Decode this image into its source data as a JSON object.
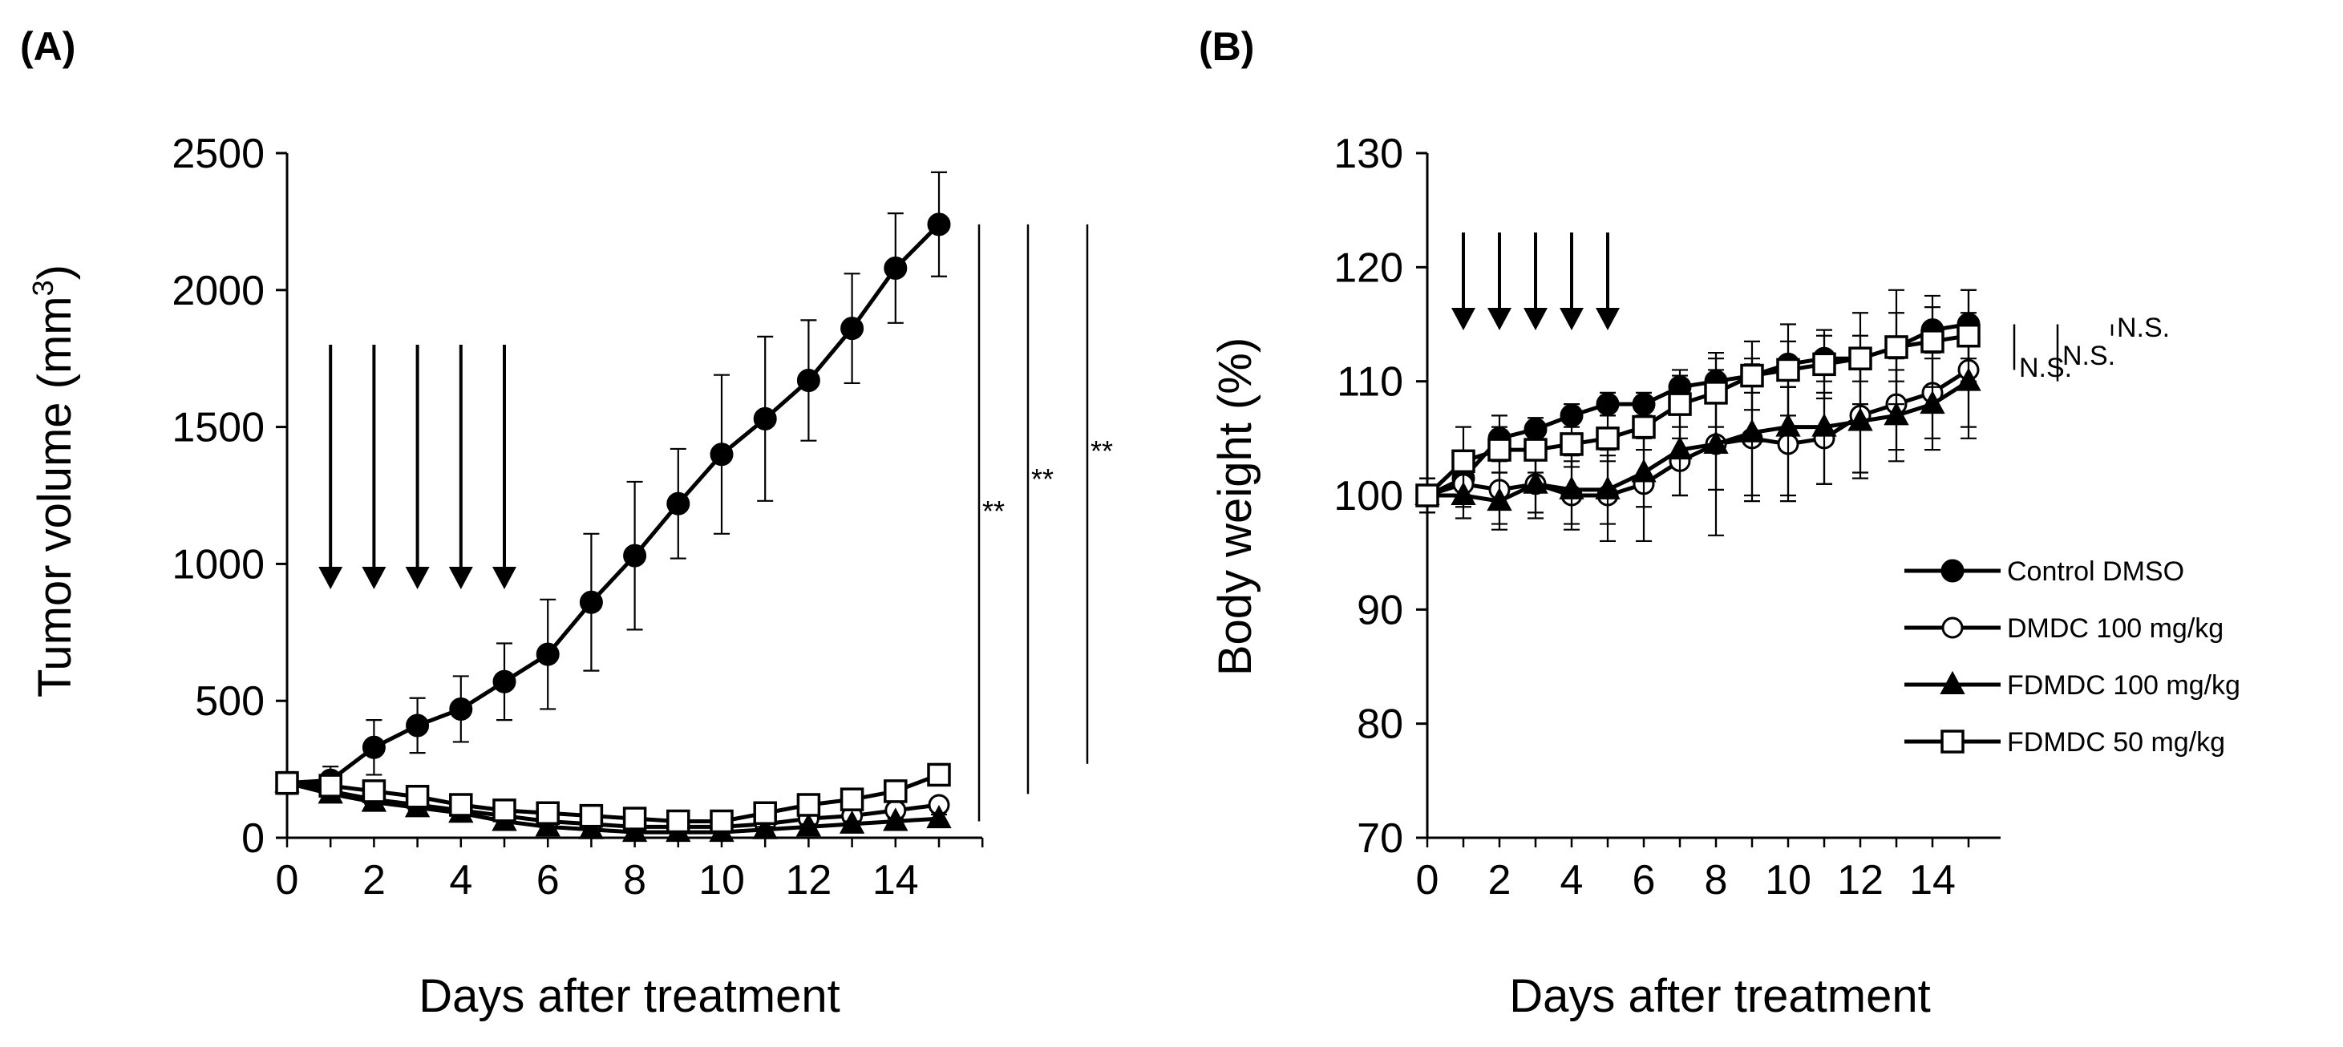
{
  "figure": {
    "panel_a_label": "(A)",
    "panel_b_label": "(B)"
  },
  "chart_data": [
    {
      "panel": "(A)",
      "type": "line",
      "xlabel": "Days after treatment",
      "ylabel_main": "Tumor volume (mm",
      "ylabel_sup": "3",
      "ylabel_end": ")",
      "xlim": [
        0,
        16
      ],
      "ylim": [
        0,
        2500
      ],
      "x_ticks": [
        0,
        2,
        4,
        6,
        8,
        10,
        12,
        14
      ],
      "y_ticks": [
        0,
        500,
        1000,
        1500,
        2000,
        2500
      ],
      "treatment_days": [
        1,
        2,
        3,
        4,
        5
      ],
      "x": [
        0,
        1,
        2,
        3,
        4,
        5,
        6,
        7,
        8,
        9,
        10,
        11,
        12,
        13,
        14,
        15
      ],
      "series": [
        {
          "marker": "filled-circle",
          "values": [
            200,
            210,
            330,
            410,
            470,
            570,
            670,
            860,
            1030,
            1220,
            1400,
            1530,
            1670,
            1860,
            2080,
            2240
          ],
          "errors": [
            40,
            50,
            100,
            100,
            120,
            140,
            200,
            250,
            270,
            200,
            290,
            300,
            220,
            200,
            200,
            190
          ]
        },
        {
          "marker": "open-circle",
          "values": [
            200,
            170,
            140,
            120,
            100,
            80,
            60,
            50,
            40,
            40,
            40,
            50,
            70,
            80,
            100,
            120
          ],
          "errors": [
            20,
            20,
            20,
            20,
            15,
            15,
            15,
            10,
            10,
            10,
            10,
            10,
            15,
            15,
            20,
            25
          ]
        },
        {
          "marker": "filled-triangle",
          "values": [
            200,
            160,
            130,
            110,
            90,
            60,
            40,
            30,
            20,
            20,
            20,
            30,
            40,
            50,
            60,
            70
          ],
          "errors": [
            20,
            20,
            20,
            15,
            15,
            10,
            10,
            10,
            10,
            10,
            10,
            10,
            10,
            10,
            10,
            15
          ]
        },
        {
          "marker": "open-square",
          "values": [
            200,
            190,
            170,
            150,
            120,
            100,
            90,
            80,
            70,
            60,
            60,
            90,
            120,
            140,
            170,
            230
          ],
          "errors": [
            25,
            25,
            25,
            20,
            20,
            15,
            15,
            15,
            15,
            15,
            15,
            20,
            25,
            25,
            30,
            35
          ]
        }
      ],
      "significance": [
        {
          "label": "**",
          "y_top": 2240,
          "y_bottom": 60
        },
        {
          "label": "**",
          "y_top": 2240,
          "y_bottom": 160
        },
        {
          "label": "**",
          "y_top": 2240,
          "y_bottom": 270
        }
      ]
    },
    {
      "panel": "(B)",
      "type": "line",
      "xlabel": "Days after treatment",
      "ylabel": "Body weight (%)",
      "xlim": [
        0,
        15.5
      ],
      "ylim": [
        70,
        130
      ],
      "x_ticks": [
        0,
        2,
        4,
        6,
        8,
        10,
        12,
        14
      ],
      "y_ticks": [
        70,
        80,
        90,
        100,
        110,
        120,
        130
      ],
      "treatment_days": [
        1,
        2,
        3,
        4,
        5
      ],
      "x": [
        0,
        1,
        2,
        3,
        4,
        5,
        6,
        7,
        8,
        9,
        10,
        11,
        12,
        13,
        14,
        15
      ],
      "series": [
        {
          "name": "Control DMSO",
          "marker": "filled-circle",
          "values": [
            100,
            101.5,
            105,
            105.8,
            107,
            108,
            108,
            109.5,
            110,
            110.5,
            111.5,
            112,
            112,
            113,
            114.5,
            115
          ],
          "errors": [
            1.5,
            1.5,
            2,
            1,
            1,
            1,
            1,
            1,
            1,
            1.5,
            2,
            2,
            2,
            3,
            2,
            3
          ]
        },
        {
          "name": "DMDC 100 mg/kg",
          "marker": "open-circle",
          "values": [
            100,
            101,
            100.5,
            101,
            100,
            100,
            101,
            103,
            104.5,
            105,
            104.5,
            105,
            107,
            108,
            109,
            111
          ],
          "errors": [
            1.5,
            2,
            3,
            3,
            3,
            4,
            5,
            3,
            4,
            5,
            5,
            4,
            5,
            4,
            4,
            5
          ]
        },
        {
          "name": "FDMDC 100 mg/kg",
          "marker": "filled-triangle",
          "values": [
            100,
            100,
            99.5,
            101,
            100.5,
            100.5,
            102,
            104,
            104.5,
            105.5,
            106,
            106,
            106.5,
            107,
            108,
            110
          ],
          "errors": [
            1.5,
            2,
            2.5,
            2.5,
            3,
            3,
            3,
            4,
            8,
            6,
            6,
            5,
            5,
            4,
            4,
            5
          ]
        },
        {
          "name": "FDMDC 50 mg/kg",
          "marker": "open-square",
          "values": [
            100,
            103,
            104,
            104,
            104.5,
            105,
            106,
            108,
            109,
            110.5,
            111,
            111.5,
            112,
            113,
            113.5,
            114
          ],
          "errors": [
            1.5,
            3,
            2,
            2,
            2,
            2,
            2,
            3,
            3,
            3,
            4,
            3,
            4,
            5,
            4,
            4
          ]
        }
      ],
      "significance": [
        {
          "label": "N.S.",
          "y_top": 115,
          "y_bottom": 111
        },
        {
          "label": "N.S.",
          "y_top": 115,
          "y_bottom": 110
        },
        {
          "label": "N.S.",
          "y_top": 115,
          "y_bottom": 114
        }
      ],
      "legend_position": "lower-right"
    }
  ]
}
